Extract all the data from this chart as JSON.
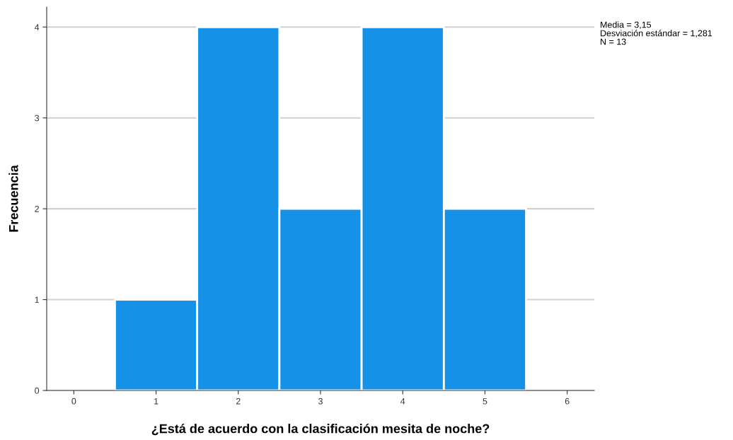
{
  "chart_data": {
    "type": "histogram",
    "xlabel": "¿Está de acuerdo con la clasificación mesita de noche?",
    "ylabel": "Frecuencia",
    "bins": [
      0.5,
      1.5,
      2.5,
      3.5,
      4.5,
      5.5
    ],
    "values": [
      1,
      4,
      2,
      4,
      2
    ],
    "color": "#1591e8",
    "xlim": [
      -0.33,
      6.33
    ],
    "xticks": [
      0,
      1,
      2,
      3,
      4,
      5,
      6
    ],
    "ylim": [
      0,
      4.22
    ],
    "yticks": [
      0,
      1,
      2,
      3,
      4
    ],
    "grid": "y",
    "annotations": [
      "Media = 3,15",
      "Desviación estándar = 1,281",
      "N = 13"
    ]
  }
}
